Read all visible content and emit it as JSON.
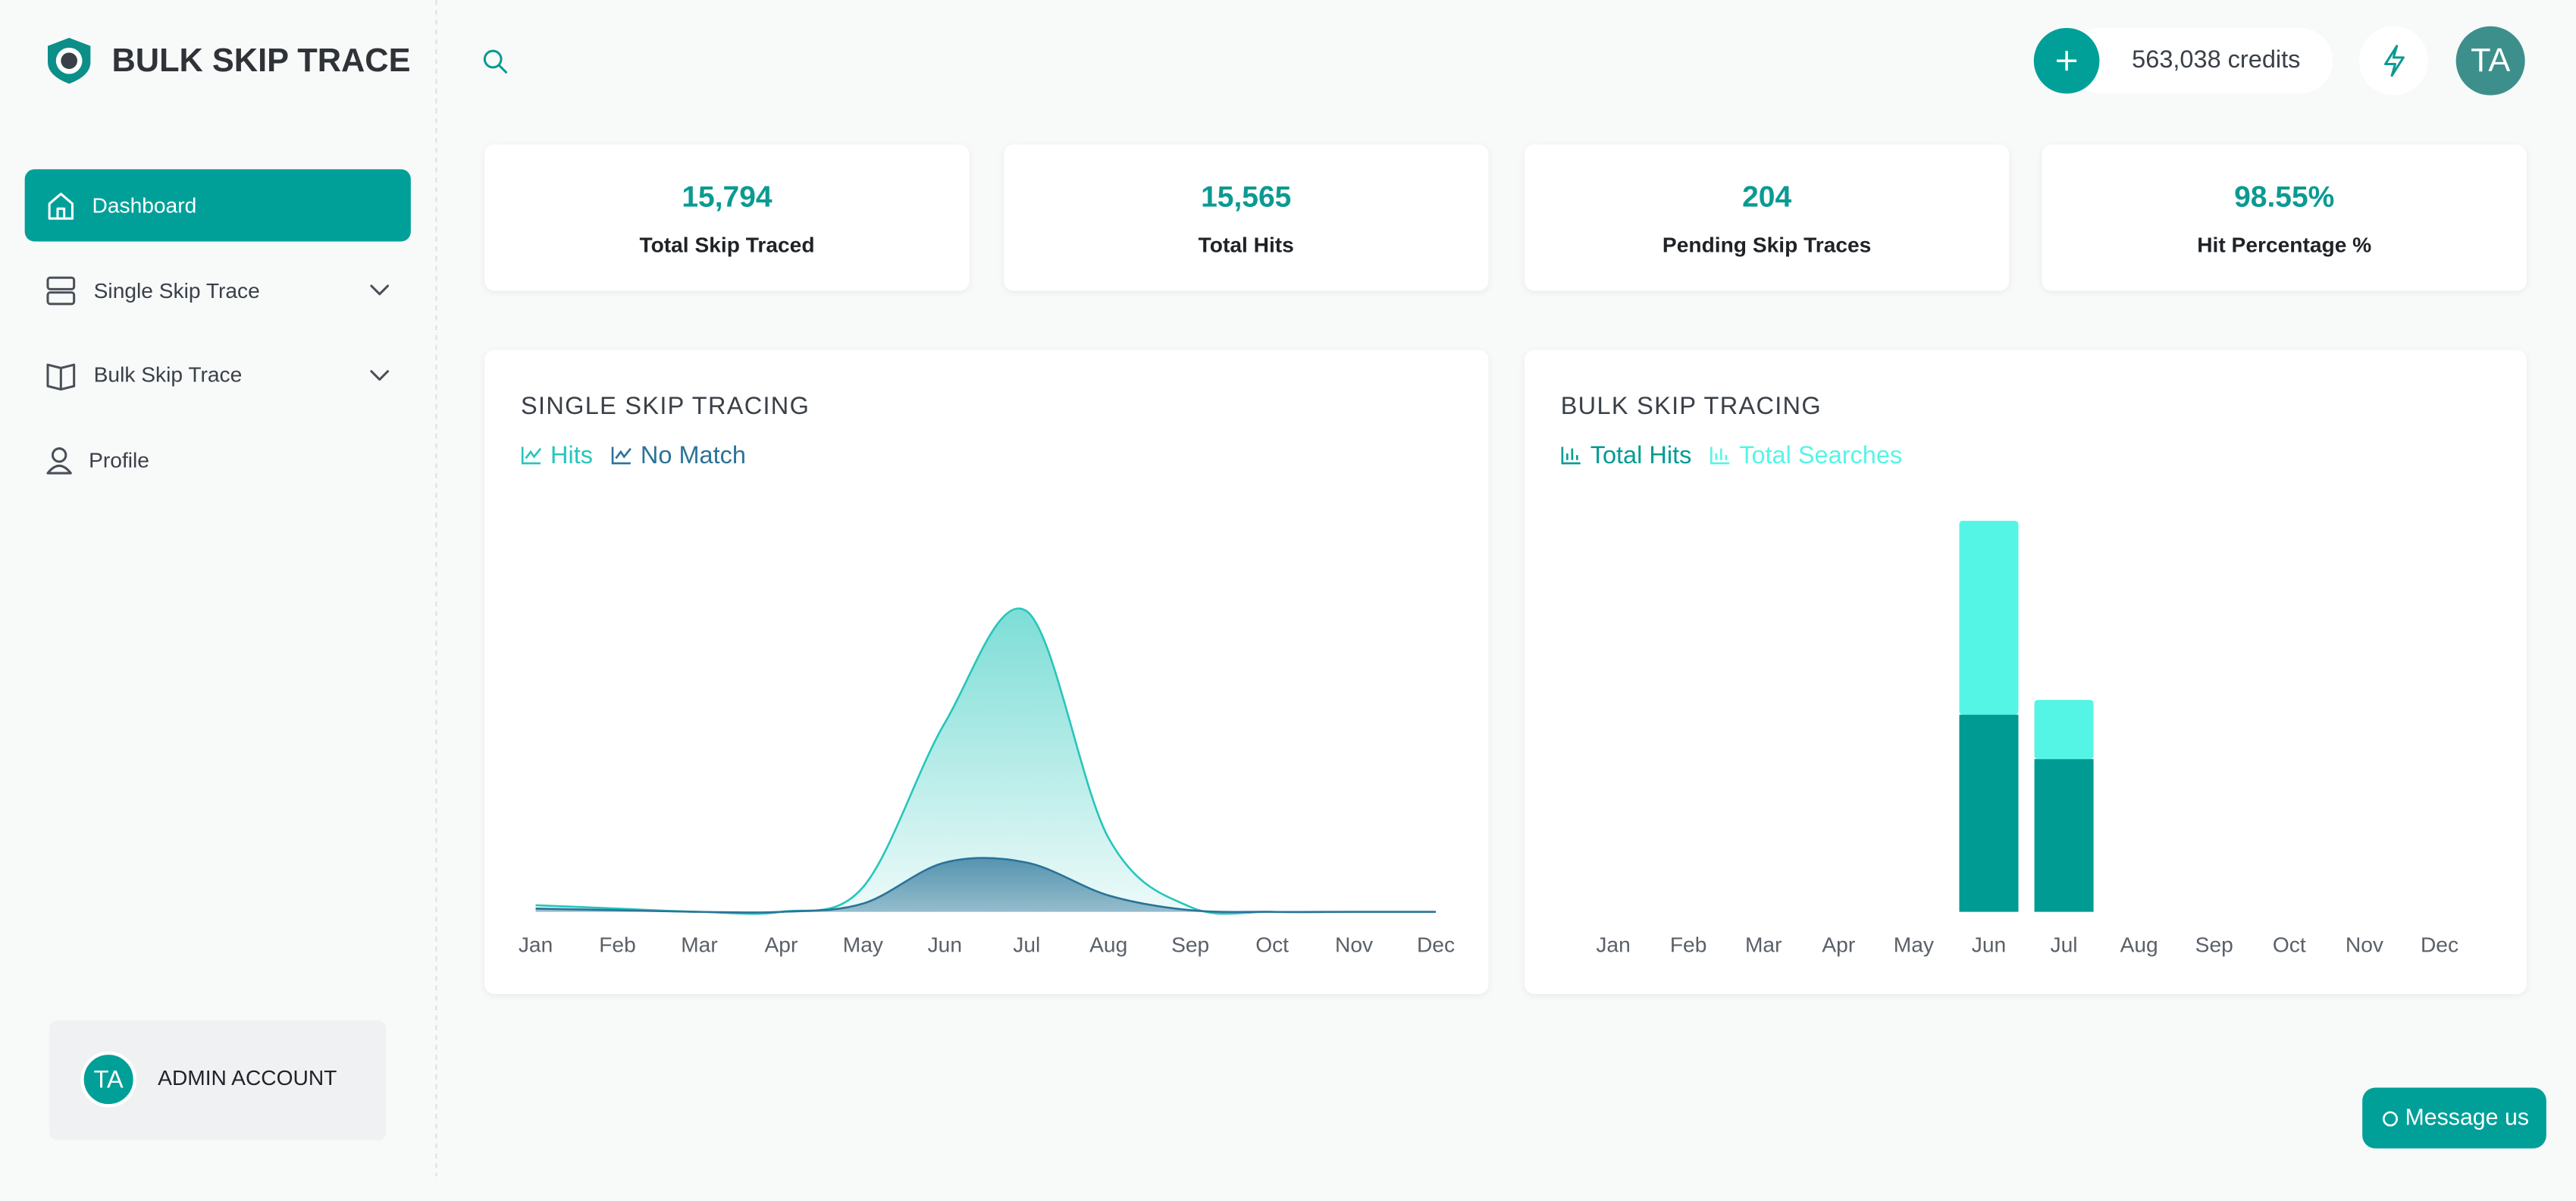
{
  "sidebar": {
    "brand": "BULK SKIP TRACE",
    "nav": [
      "Dashboard",
      "Single Skip Trace",
      "Bulk Skip Trace",
      "Profile"
    ],
    "account": {
      "initials": "TA",
      "name": "ADMIN ACCOUNT"
    }
  },
  "header": {
    "credits": "563,038 credits",
    "initials": "TA"
  },
  "stats": [
    {
      "value": "15,794",
      "label": "Total Skip Traced"
    },
    {
      "value": "15,565",
      "label": "Total Hits"
    },
    {
      "value": "204",
      "label": "Pending Skip Traces"
    },
    {
      "value": "98.55%",
      "label": "Hit Percentage %"
    }
  ],
  "chart_data": [
    {
      "type": "area",
      "title": "SINGLE SKIP TRACING",
      "categories": [
        "Jan",
        "Feb",
        "Mar",
        "Apr",
        "May",
        "Jun",
        "Jul",
        "Aug",
        "Sep",
        "Oct",
        "Nov",
        "Dec"
      ],
      "ylim": [
        0,
        200
      ],
      "series": [
        {
          "name": "Hits",
          "color": "#26c6bb",
          "values": [
            4,
            2,
            0,
            0,
            15,
            115,
            183,
            45,
            3,
            0,
            0,
            0
          ]
        },
        {
          "name": "No Match",
          "color": "#2b7399",
          "values": [
            2,
            1,
            0,
            0,
            5,
            30,
            30,
            10,
            1,
            0,
            0,
            0
          ]
        }
      ]
    },
    {
      "type": "bar",
      "stacked": true,
      "title": "BULK SKIP TRACING",
      "categories": [
        "Jan",
        "Feb",
        "Mar",
        "Apr",
        "May",
        "Jun",
        "Jul",
        "Aug",
        "Sep",
        "Oct",
        "Nov",
        "Dec"
      ],
      "ylim": [
        0,
        250
      ],
      "series": [
        {
          "name": "Total Hits",
          "color": "#009b93",
          "values": [
            0,
            0,
            0,
            0,
            0,
            120,
            93,
            0,
            0,
            0,
            0,
            0
          ]
        },
        {
          "name": "Total Searches",
          "color": "#55f5e6",
          "values": [
            0,
            0,
            0,
            0,
            0,
            118,
            36,
            0,
            0,
            0,
            0,
            0
          ]
        }
      ]
    }
  ],
  "chat": {
    "button": "Message us"
  }
}
